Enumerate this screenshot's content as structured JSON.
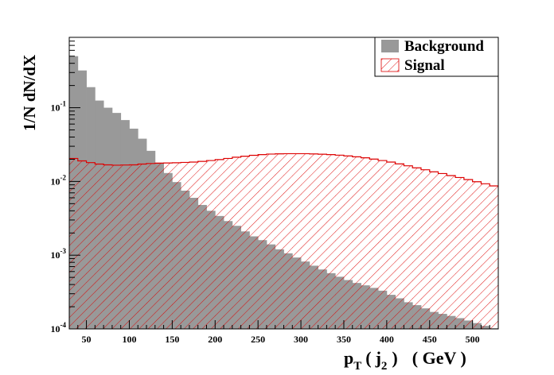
{
  "chart_data": {
    "type": "histogram",
    "title": "",
    "xlabel": "p_T ( j_2 ) ( GeV )",
    "xlabel_parts": {
      "p": "p",
      "T": "T",
      "open": "(",
      "j": "j",
      "two": "2",
      "close": ")",
      "unit": "( GeV )"
    },
    "ylabel": "1/N dN/dX",
    "xlim": [
      30,
      530
    ],
    "ylim": [
      0.0001,
      0.9
    ],
    "yscale": "log",
    "grid": false,
    "legend_position": "top-right",
    "bin_width": 10,
    "x_ticks": [
      50,
      100,
      150,
      200,
      250,
      300,
      350,
      400,
      450,
      500
    ],
    "y_ticks": [
      {
        "value": 0.0001,
        "base": "10",
        "exp": "-4"
      },
      {
        "value": 0.001,
        "base": "10",
        "exp": "-3"
      },
      {
        "value": 0.01,
        "base": "10",
        "exp": "-2"
      },
      {
        "value": 0.1,
        "base": "10",
        "exp": "-1"
      }
    ],
    "series": [
      {
        "name": "Background",
        "style": "filled",
        "color": "#999999",
        "values": [
          0.5,
          0.32,
          0.19,
          0.125,
          0.1,
          0.085,
          0.068,
          0.052,
          0.038,
          0.026,
          0.018,
          0.013,
          0.0098,
          0.0075,
          0.006,
          0.0048,
          0.004,
          0.0034,
          0.0029,
          0.0025,
          0.0021,
          0.0018,
          0.0016,
          0.0014,
          0.0012,
          0.00106,
          0.00093,
          0.00082,
          0.00072,
          0.00064,
          0.00057,
          0.00051,
          0.00046,
          0.00042,
          0.00039,
          0.00036,
          0.00033,
          0.00029,
          0.00026,
          0.00023,
          0.00021,
          0.00019,
          0.00017,
          0.00016,
          0.00015,
          0.00014,
          0.00013,
          0.00012,
          0.00011,
          0.000102
        ]
      },
      {
        "name": "Signal",
        "style": "hatched",
        "color": "#dd0000",
        "values": [
          0.0205,
          0.019,
          0.018,
          0.0172,
          0.0168,
          0.0166,
          0.0167,
          0.0168,
          0.0172,
          0.0175,
          0.0177,
          0.0178,
          0.0179,
          0.0181,
          0.0183,
          0.0187,
          0.0192,
          0.0198,
          0.0205,
          0.0213,
          0.022,
          0.0226,
          0.0231,
          0.0235,
          0.0237,
          0.0238,
          0.0238,
          0.0238,
          0.0236,
          0.0234,
          0.0231,
          0.0227,
          0.0222,
          0.0216,
          0.0209,
          0.0201,
          0.0192,
          0.0183,
          0.0173,
          0.0163,
          0.0153,
          0.0144,
          0.0135,
          0.0128,
          0.012,
          0.0113,
          0.0106,
          0.0099,
          0.0093,
          0.0087
        ]
      }
    ]
  }
}
